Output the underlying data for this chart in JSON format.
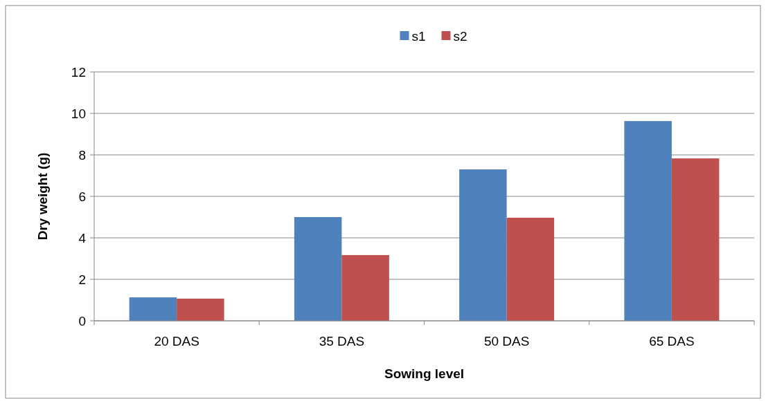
{
  "chart_data": {
    "type": "bar",
    "xlabel": "Sowing level",
    "ylabel": "Dry weight (g)",
    "categories": [
      "20 DAS",
      "35 DAS",
      "50 DAS",
      "65 DAS"
    ],
    "series": [
      {
        "name": "s1",
        "color": "#4f81bd",
        "values": [
          1.13,
          5.0,
          7.3,
          9.63
        ]
      },
      {
        "name": "s2",
        "color": "#c0504d",
        "values": [
          1.07,
          3.17,
          4.97,
          7.83
        ]
      }
    ],
    "ylim": [
      0,
      12
    ],
    "yticks": [
      0,
      2,
      4,
      6,
      8,
      10,
      12
    ],
    "grid": "y",
    "legend": "top"
  }
}
